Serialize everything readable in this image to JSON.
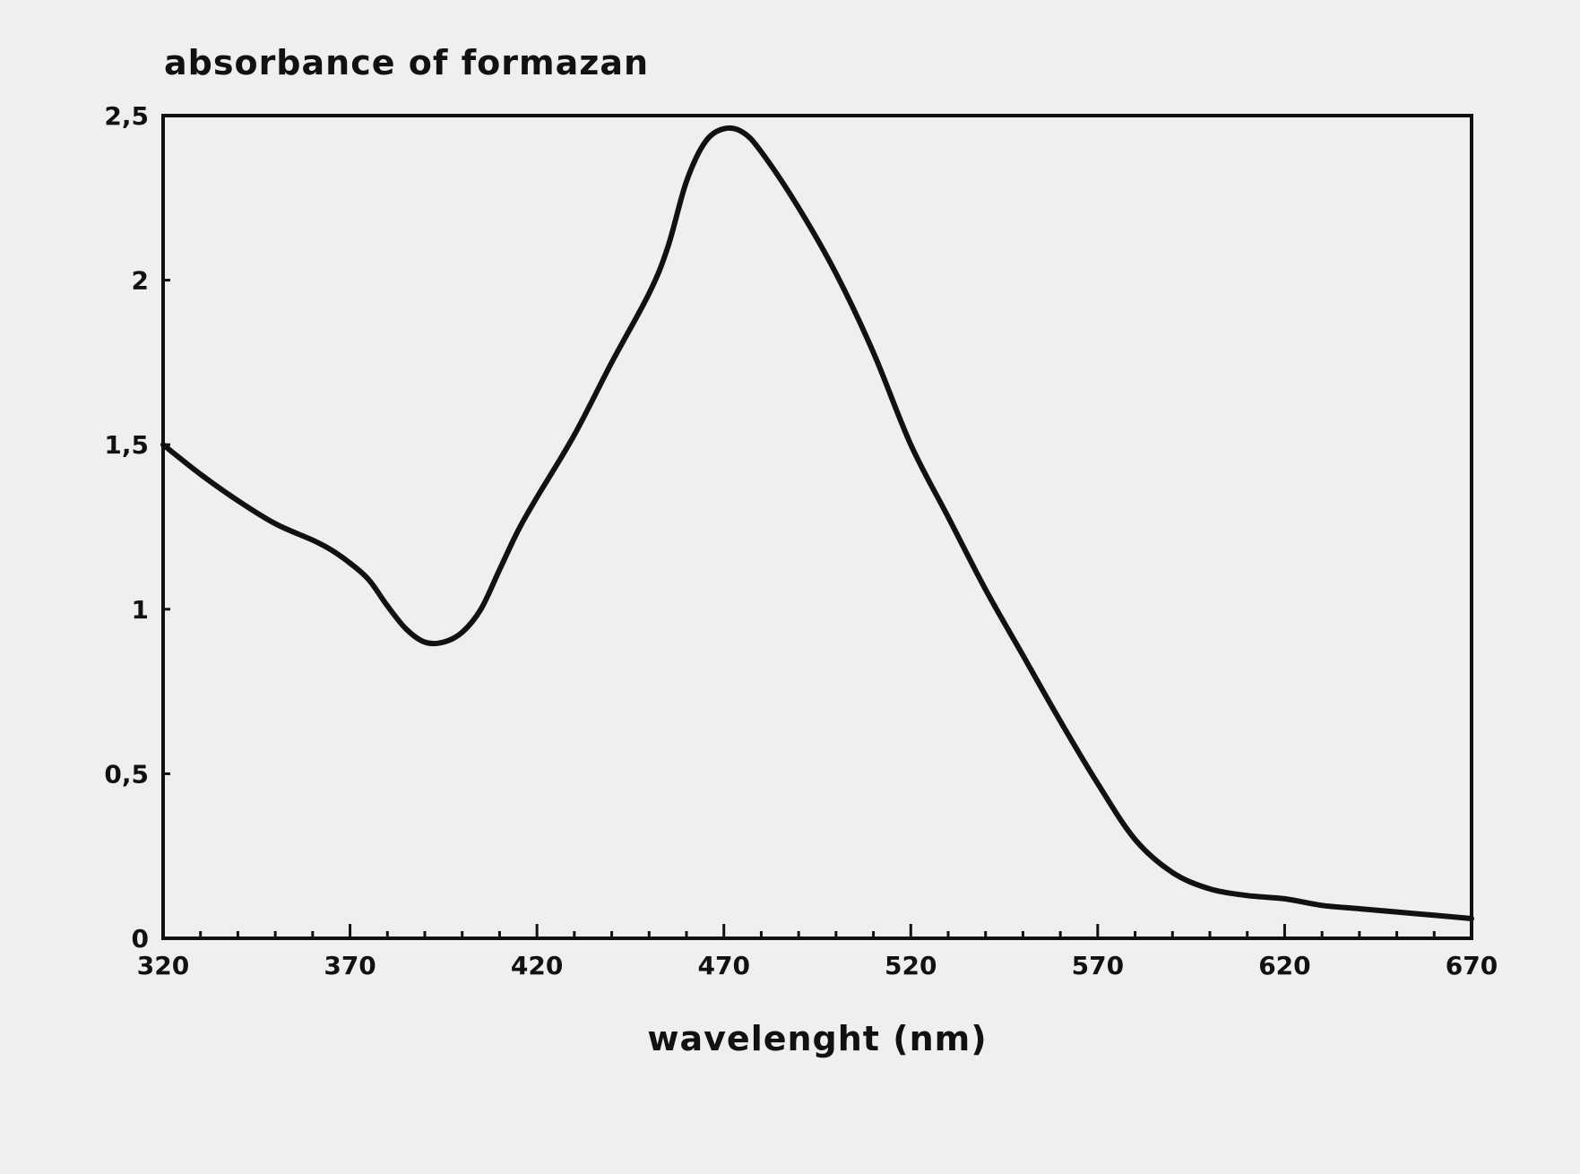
{
  "chart_data": {
    "type": "line",
    "title": "absorbance of formazan",
    "xlabel": "wavelenght (nm)",
    "ylabel": "",
    "xlim": [
      320,
      670
    ],
    "ylim": [
      0,
      2.5
    ],
    "x_tick_values": [
      320,
      370,
      420,
      470,
      520,
      570,
      620,
      670
    ],
    "x_tick_labels": [
      "320",
      "370",
      "420",
      "470",
      "520",
      "570",
      "620",
      "670"
    ],
    "x_minor_step": 10,
    "y_tick_values": [
      0,
      0.5,
      1,
      1.5,
      2,
      2.5
    ],
    "y_tick_labels": [
      "0",
      "0,5",
      "1",
      "1,5",
      "2",
      "2,5"
    ],
    "grid": false,
    "legend": "none",
    "series": [
      {
        "x": [
          320,
          330,
          340,
          350,
          360,
          365,
          370,
          375,
          380,
          385,
          390,
          395,
          400,
          405,
          410,
          415,
          420,
          430,
          440,
          450,
          455,
          460,
          465,
          470,
          475,
          480,
          490,
          500,
          510,
          520,
          530,
          540,
          550,
          560,
          570,
          580,
          590,
          600,
          610,
          620,
          630,
          640,
          650,
          660,
          670
        ],
        "y": [
          1.5,
          1.41,
          1.33,
          1.26,
          1.21,
          1.18,
          1.14,
          1.09,
          1.01,
          0.94,
          0.9,
          0.9,
          0.93,
          1.0,
          1.12,
          1.24,
          1.34,
          1.53,
          1.75,
          1.96,
          2.1,
          2.3,
          2.42,
          2.46,
          2.45,
          2.39,
          2.22,
          2.02,
          1.78,
          1.5,
          1.28,
          1.06,
          0.86,
          0.66,
          0.47,
          0.3,
          0.2,
          0.15,
          0.13,
          0.12,
          0.1,
          0.09,
          0.08,
          0.07,
          0.06
        ]
      }
    ]
  },
  "style": {
    "background": "#efefef",
    "ink": "#111111"
  }
}
